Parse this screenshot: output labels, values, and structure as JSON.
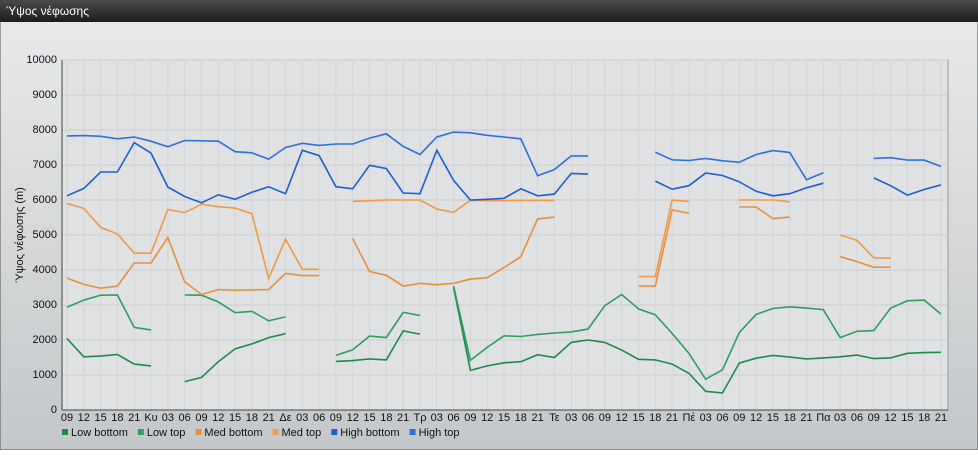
{
  "chart_data": {
    "type": "line",
    "title": "Ύψος νέφωσης",
    "y_label": "Ύψος νέφωσης (m)",
    "categories": [
      "09",
      "12",
      "15",
      "18",
      "21",
      "Κυ",
      "03",
      "06",
      "09",
      "12",
      "15",
      "18",
      "21",
      "Δε",
      "03",
      "06",
      "09",
      "12",
      "15",
      "18",
      "21",
      "Τρ",
      "03",
      "06",
      "09",
      "12",
      "15",
      "18",
      "21",
      "Τε",
      "03",
      "06",
      "09",
      "12",
      "15",
      "18",
      "21",
      "Πέ",
      "03",
      "06",
      "09",
      "12",
      "15",
      "18",
      "21",
      "Πα",
      "03",
      "06",
      "09",
      "12",
      "15",
      "18",
      "21"
    ],
    "ylim": [
      0,
      10000
    ],
    "yticks": [
      0,
      1000,
      2000,
      3000,
      4000,
      5000,
      6000,
      7000,
      8000,
      9000,
      10000
    ],
    "grid": true,
    "legend": "bottom",
    "series": [
      {
        "name": "Low bottom",
        "color": "#1f8a4c",
        "values": [
          2040,
          1520,
          1540,
          1590,
          1310,
          1260,
          null,
          810,
          930,
          1380,
          1750,
          1890,
          2070,
          2180,
          null,
          null,
          1390,
          1410,
          1460,
          1430,
          2260,
          2170,
          null,
          3500,
          1130,
          1260,
          1350,
          1380,
          1580,
          1500,
          1930,
          2000,
          1930,
          1710,
          1450,
          1430,
          1310,
          1050,
          530,
          490,
          1340,
          1480,
          1560,
          1510,
          1460,
          1490,
          1520,
          1570,
          1470,
          1490,
          1620,
          1640,
          1650
        ]
      },
      {
        "name": "Low top",
        "color": "#2e9e63",
        "values": [
          2940,
          3140,
          3280,
          3290,
          2360,
          2290,
          null,
          3290,
          3280,
          3090,
          2780,
          2820,
          2550,
          2660,
          null,
          null,
          1560,
          1720,
          2110,
          2070,
          2790,
          2700,
          null,
          3540,
          1420,
          1790,
          2120,
          2100,
          2160,
          2200,
          2230,
          2310,
          2980,
          3300,
          2890,
          2720,
          2190,
          1620,
          880,
          1150,
          2210,
          2730,
          2900,
          2950,
          2910,
          2870,
          2070,
          2250,
          2270,
          2910,
          3120,
          3140,
          2740
        ]
      },
      {
        "name": "Med bottom",
        "color": "#e8913c",
        "values": [
          3770,
          3590,
          3480,
          3540,
          4200,
          4200,
          4930,
          3660,
          3300,
          3440,
          3420,
          3430,
          3440,
          3900,
          3840,
          3840,
          null,
          4900,
          3960,
          3850,
          3540,
          3620,
          3580,
          3620,
          3740,
          3780,
          4070,
          4380,
          5460,
          5510,
          null,
          null,
          null,
          null,
          3540,
          3540,
          5720,
          5620,
          null,
          null,
          5800,
          5800,
          5470,
          5510,
          null,
          null,
          4380,
          4240,
          4080,
          4080,
          null,
          null,
          null
        ]
      },
      {
        "name": "Med top",
        "color": "#f09a46",
        "values": [
          5900,
          5760,
          5220,
          5030,
          4480,
          4480,
          5730,
          5640,
          5880,
          5810,
          5770,
          5610,
          3760,
          4880,
          4020,
          4020,
          null,
          5960,
          5980,
          6000,
          6000,
          6000,
          5740,
          5650,
          5990,
          5980,
          5980,
          5990,
          5990,
          5990,
          null,
          null,
          null,
          null,
          3810,
          3810,
          6000,
          5960,
          null,
          null,
          6000,
          6000,
          6000,
          5950,
          null,
          null,
          5000,
          4850,
          4350,
          4340,
          null,
          null,
          null
        ]
      },
      {
        "name": "High bottom",
        "color": "#1f5fd6",
        "values": [
          6120,
          6330,
          6800,
          6800,
          7640,
          7340,
          6370,
          6100,
          5920,
          6150,
          6020,
          6220,
          6380,
          6180,
          7420,
          7270,
          6380,
          6320,
          6990,
          6900,
          6200,
          6180,
          7420,
          6560,
          6000,
          6020,
          6050,
          6320,
          6120,
          6170,
          6760,
          6740,
          null,
          null,
          null,
          6540,
          6310,
          6410,
          6770,
          6700,
          6520,
          6250,
          6120,
          6180,
          6350,
          6480,
          null,
          null,
          6630,
          6410,
          6140,
          6300,
          6430
        ]
      },
      {
        "name": "High top",
        "color": "#2f6fe6",
        "values": [
          7830,
          7840,
          7820,
          7750,
          7800,
          7680,
          7520,
          7700,
          7690,
          7680,
          7380,
          7350,
          7170,
          7500,
          7620,
          7560,
          7600,
          7600,
          7770,
          7890,
          7530,
          7300,
          7800,
          7940,
          7920,
          7850,
          7800,
          7750,
          6690,
          6870,
          7260,
          7260,
          null,
          null,
          null,
          7370,
          7150,
          7130,
          7190,
          7120,
          7080,
          7300,
          7410,
          7360,
          6580,
          6780,
          null,
          null,
          7190,
          7210,
          7140,
          7140,
          6960
        ]
      }
    ]
  }
}
